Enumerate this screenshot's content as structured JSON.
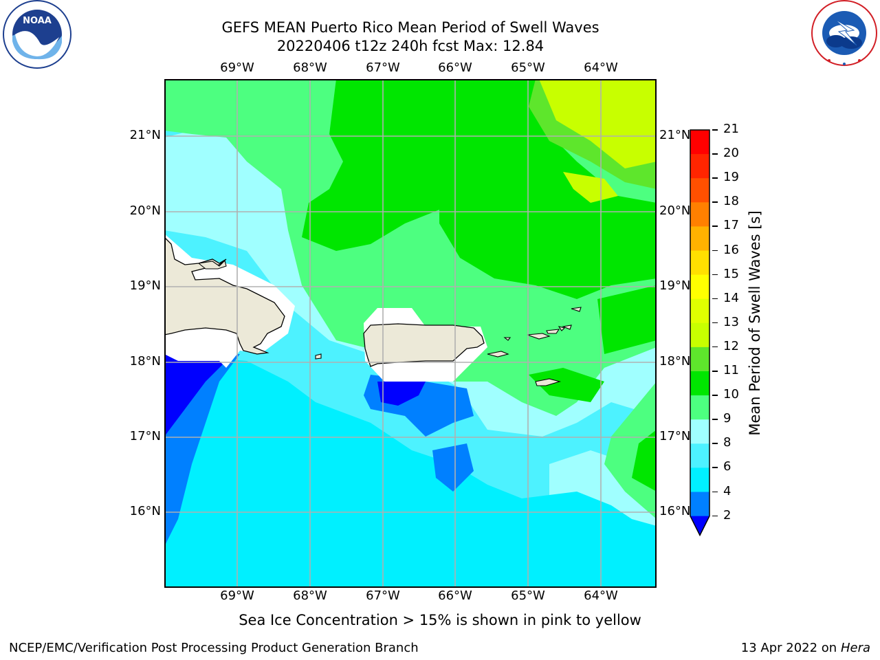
{
  "title": {
    "line1": "GEFS MEAN Puerto Rico Mean Period of Swell Waves",
    "line2": "20220406 t12z 240h fcst   Max: 12.84"
  },
  "map": {
    "lon_labels": [
      "69°W",
      "68°W",
      "67°W",
      "66°W",
      "65°W",
      "64°W"
    ],
    "lat_labels": [
      "21°N",
      "20°N",
      "19°N",
      "18°N",
      "17°N",
      "16°N"
    ],
    "extent": {
      "lon": [
        -70.0,
        -63.25
      ],
      "lat": [
        15.0,
        21.75
      ]
    },
    "gridlines": true,
    "land_color": "#ece9d8",
    "gap_color": "#ffffff"
  },
  "colorbar": {
    "label": "Mean Period of Swell Waves [s]",
    "ticks": [
      "21",
      "20",
      "19",
      "18",
      "17",
      "16",
      "15",
      "14",
      "13",
      "12",
      "11",
      "10",
      "9",
      "8",
      "6",
      "4",
      "2"
    ],
    "bins": [
      {
        "from": 20,
        "to": 21,
        "color": "#ff0000"
      },
      {
        "from": 19,
        "to": 20,
        "color": "#ff2500"
      },
      {
        "from": 18,
        "to": 19,
        "color": "#ff5000"
      },
      {
        "from": 17,
        "to": 18,
        "color": "#ff8000"
      },
      {
        "from": 16,
        "to": 17,
        "color": "#ffb200"
      },
      {
        "from": 15,
        "to": 16,
        "color": "#ffe000"
      },
      {
        "from": 14,
        "to": 15,
        "color": "#ffff00"
      },
      {
        "from": 13,
        "to": 14,
        "color": "#e0ff00"
      },
      {
        "from": 12,
        "to": 13,
        "color": "#c8ff00"
      },
      {
        "from": 11,
        "to": 12,
        "color": "#5ee62c"
      },
      {
        "from": 10,
        "to": 11,
        "color": "#00e600"
      },
      {
        "from": 9,
        "to": 10,
        "color": "#4dff80"
      },
      {
        "from": 8,
        "to": 9,
        "color": "#a0ffff"
      },
      {
        "from": 6,
        "to": 8,
        "color": "#4df2ff"
      },
      {
        "from": 4,
        "to": 6,
        "color": "#00f0ff"
      },
      {
        "from": 2,
        "to": 4,
        "color": "#0080ff"
      },
      {
        "from": 0,
        "to": 2,
        "color": "#0000ff"
      }
    ]
  },
  "note": "Sea Ice Concentration > 15% is shown in pink to yellow",
  "footer": {
    "credit": "NCEP/EMC/Verification Post Processing Product Generation Branch",
    "date": "13 Apr 2022 on",
    "machine": "Hera"
  },
  "logos": {
    "noaa": "NOAA",
    "nws": "NATIONAL WEATHER SERVICE"
  }
}
